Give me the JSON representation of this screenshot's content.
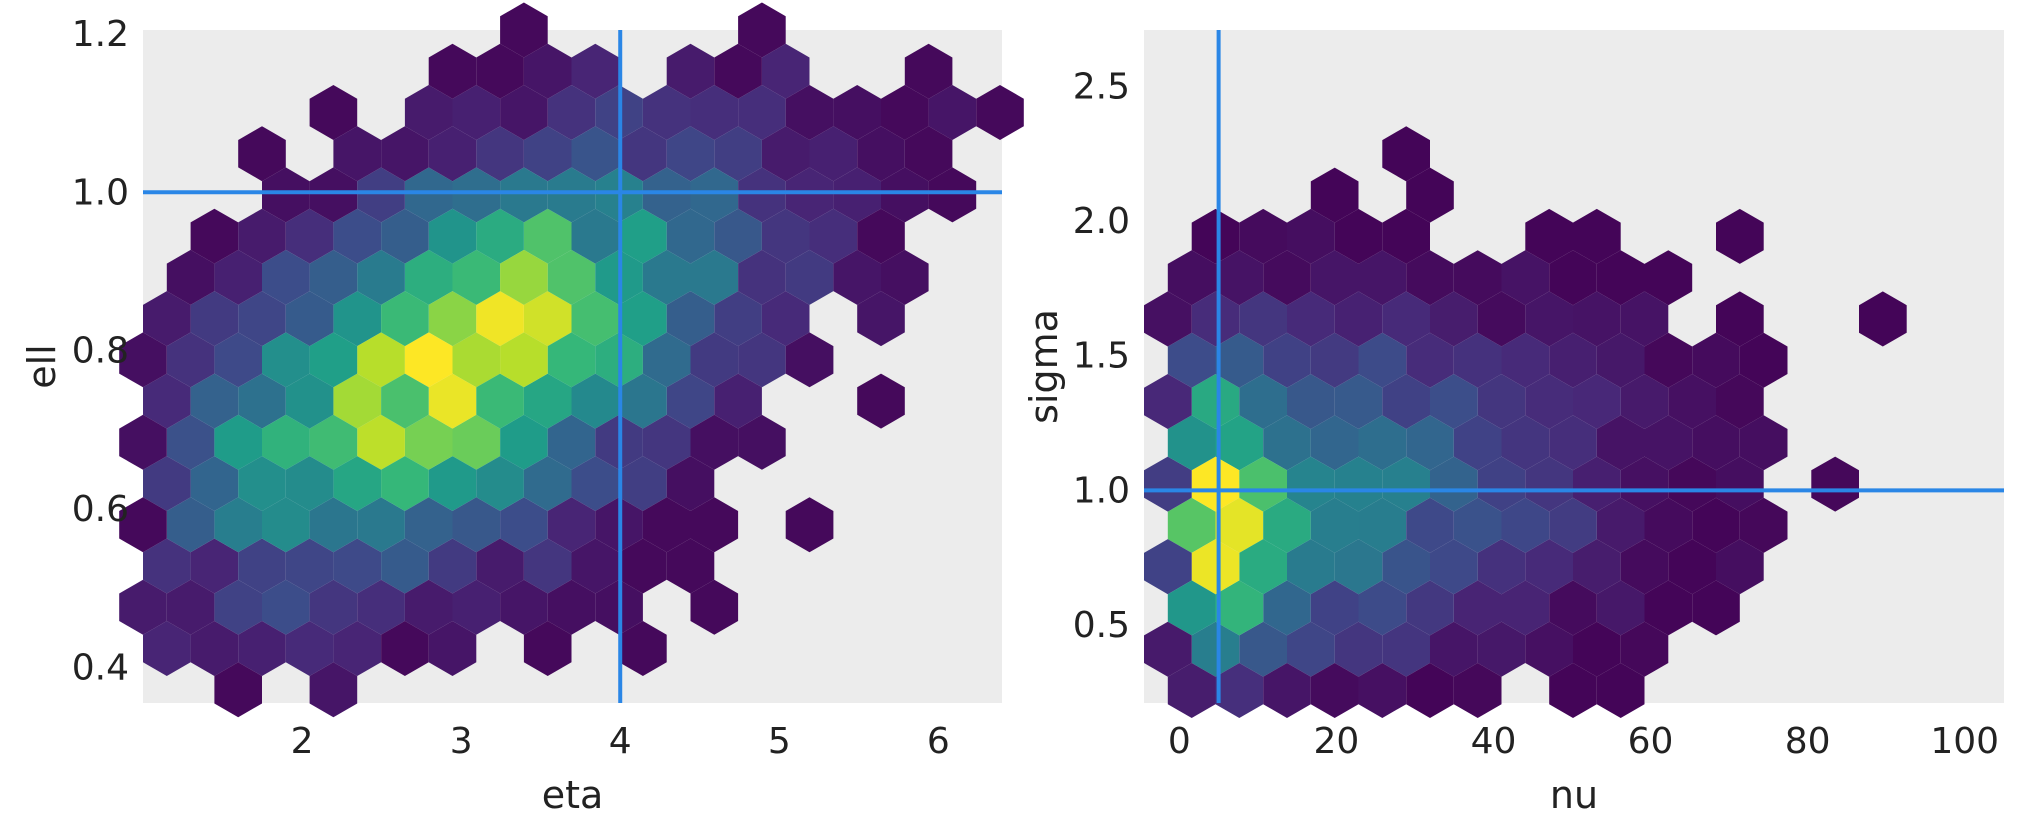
{
  "chart_data": [
    {
      "type": "hexbin",
      "xlabel": "eta",
      "ylabel": "ell",
      "xlim": [
        1.0,
        6.4
      ],
      "ylim": [
        0.355,
        1.205
      ],
      "xticks": [
        2,
        3,
        4,
        5,
        6
      ],
      "yticks": [
        0.4,
        0.6,
        0.8,
        1.0,
        1.2
      ],
      "xtick_labels": [
        "2",
        "3",
        "4",
        "5",
        "6"
      ],
      "ytick_labels": [
        "0.4",
        "0.6",
        "0.8",
        "1.0",
        "1.2"
      ],
      "reference_lines": {
        "x": 4.0,
        "y": 1.0
      },
      "center": {
        "x": 3.0,
        "y": 0.78
      },
      "spread": {
        "x": 1.0,
        "y": 0.15
      },
      "correlation": 0.55,
      "hex_size": 0.032,
      "background": "#ececec",
      "line_color": "#2a86e6",
      "colormap": "viridis",
      "grid": false
    },
    {
      "type": "hexbin",
      "xlabel": "nu",
      "ylabel": "sigma",
      "xlim": [
        -4.5,
        105.0
      ],
      "ylim": [
        0.21,
        2.71
      ],
      "xticks": [
        0,
        20,
        40,
        60,
        80,
        100
      ],
      "yticks": [
        0.5,
        1.0,
        1.5,
        2.0,
        2.5
      ],
      "xtick_labels": [
        "0",
        "20",
        "40",
        "60",
        "80",
        "100"
      ],
      "ytick_labels": [
        "0.5",
        "1.0",
        "1.5",
        "2.0",
        "2.5"
      ],
      "reference_lines": {
        "x": 5.0,
        "y": 1.0
      },
      "center": {
        "x": 12.0,
        "y": 0.95
      },
      "spread": {
        "x": 22.0,
        "y": 0.35
      },
      "correlation": 0.2,
      "hex_size": 0.032,
      "background": "#ececec",
      "line_color": "#2a86e6",
      "colormap": "viridis",
      "grid": false
    }
  ]
}
